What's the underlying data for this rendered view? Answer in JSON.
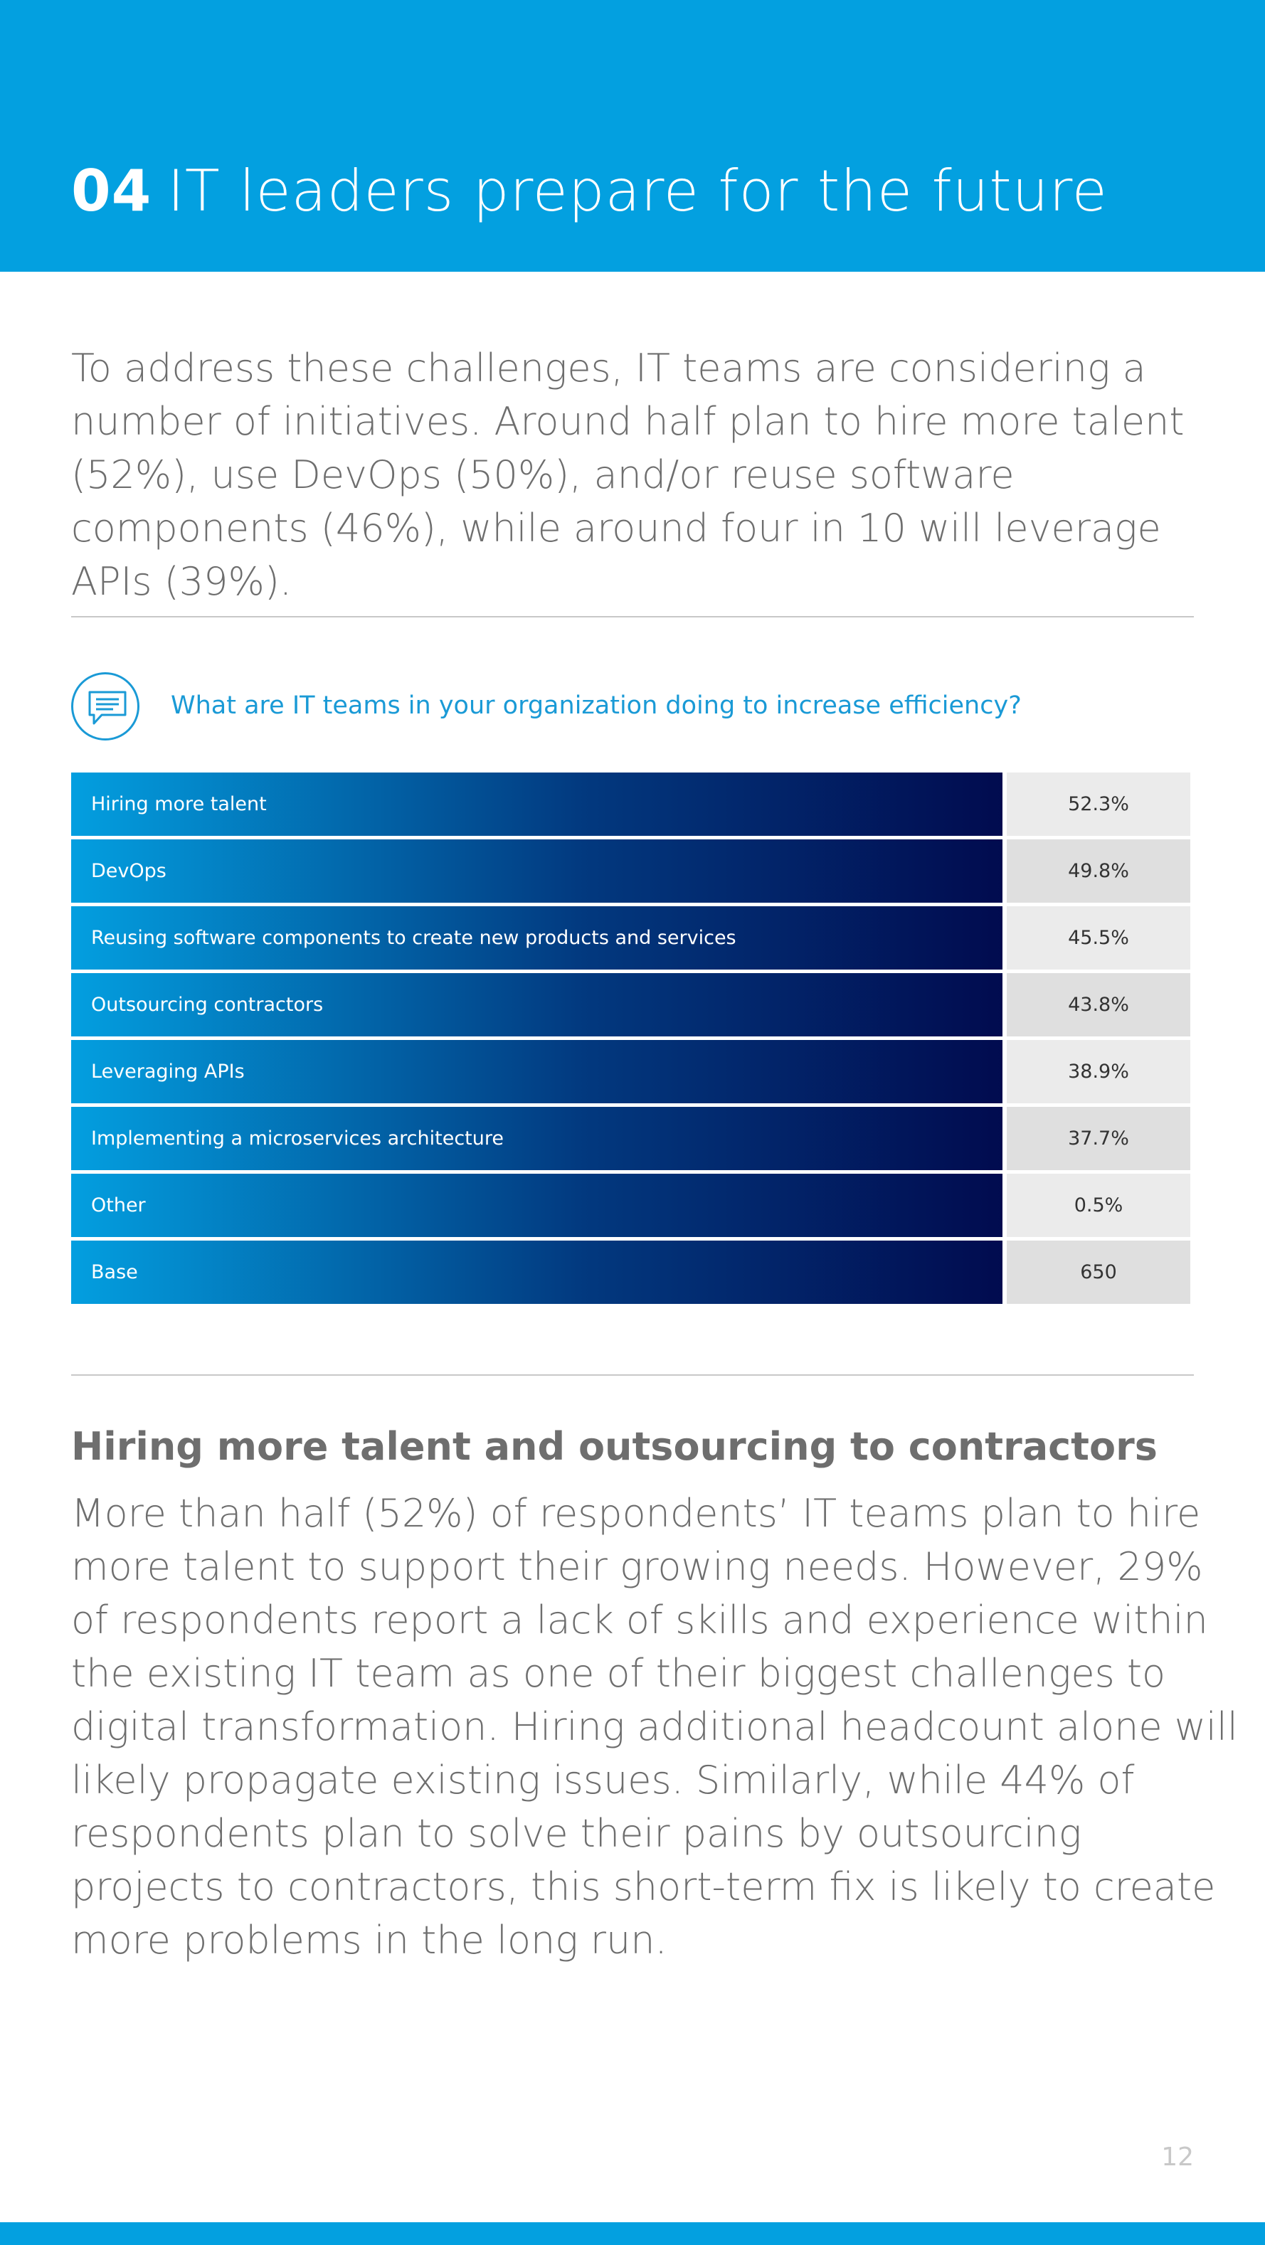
{
  "header": {
    "number": "04",
    "title": "IT leaders prepare for the future"
  },
  "intro": "To address these challenges, IT teams are considering a number of initiatives. Around half plan to hire more talent (52%), use DevOps (50%), and/or reuse software components (46%), while around four in 10 will leverage APIs (39%).",
  "question": {
    "icon": "speech-bubble-icon",
    "text": "What are IT teams in your organization doing to increase efficiency?"
  },
  "table": {
    "rows": [
      {
        "label": "Hiring more talent",
        "value": "52.3%"
      },
      {
        "label": "DevOps",
        "value": "49.8%"
      },
      {
        "label": "Reusing software components to create new products and services",
        "value": "45.5%"
      },
      {
        "label": "Outsourcing contractors",
        "value": "43.8%"
      },
      {
        "label": "Leveraging APIs",
        "value": "38.9%"
      },
      {
        "label": "Implementing a microservices architecture",
        "value": "37.7%"
      },
      {
        "label": "Other",
        "value": "0.5%"
      },
      {
        "label": "Base",
        "value": "650"
      }
    ]
  },
  "section": {
    "heading": "Hiring more talent and outsourcing to contractors",
    "body": "More than half (52%) of respondents’ IT teams plan to hire more talent to support their growing needs. However, 29% of respondents report a lack of skills and experience within the existing IT team as one of their biggest challenges to digital transformation. Hiring additional headcount alone will likely propagate existing issues. Similarly, while 44% of respondents plan to solve their pains by outsourcing projects to contractors, this short-term fix is likely to create more problems in the long run."
  },
  "page_number": "12",
  "colors": {
    "brand_blue": "#03a0e0",
    "dark_navy": "#010b4f",
    "text_gray": "#6e6e6e",
    "question_blue": "#1a9ad6"
  }
}
